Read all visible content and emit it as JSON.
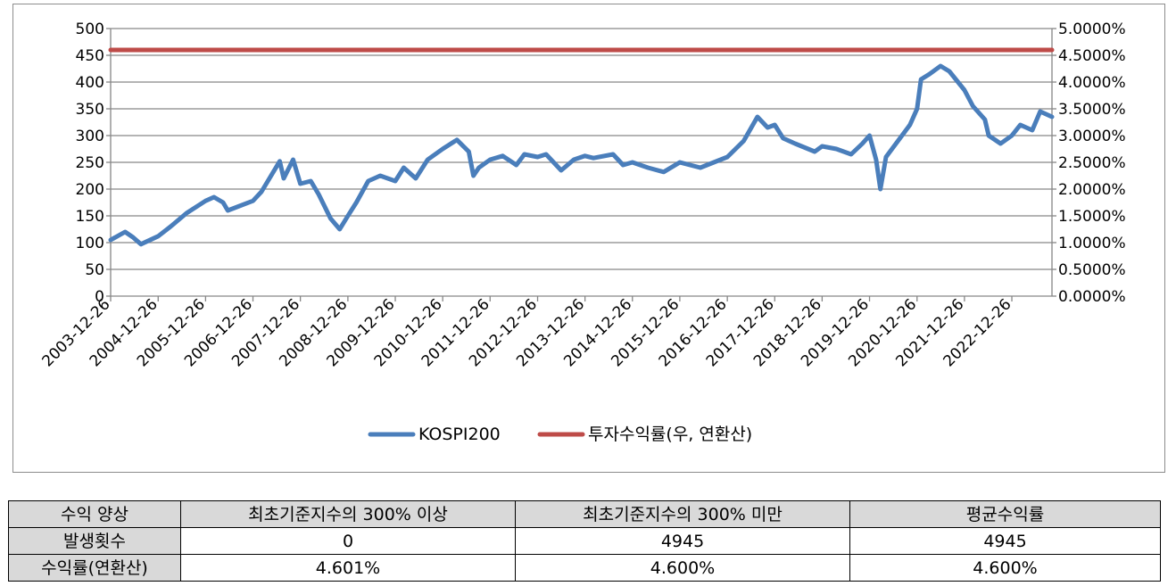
{
  "chart_data": {
    "type": "line",
    "y_left": {
      "min": 0,
      "max": 500,
      "ticks": [
        "500",
        "450",
        "400",
        "350",
        "300",
        "250",
        "200",
        "150",
        "100",
        "50",
        "0"
      ]
    },
    "y_right": {
      "min": 0,
      "max": 5,
      "ticks": [
        "5.0000%",
        "4.5000%",
        "4.0000%",
        "3.5000%",
        "3.0000%",
        "2.5000%",
        "2.0000%",
        "1.5000%",
        "1.0000%",
        "0.5000%",
        "0.0000%"
      ]
    },
    "x_ticks": [
      "2003-12-26",
      "2004-12-26",
      "2005-12-26",
      "2006-12-26",
      "2007-12-26",
      "2008-12-26",
      "2009-12-26",
      "2010-12-26",
      "2011-12-26",
      "2012-12-26",
      "2013-12-26",
      "2014-12-26",
      "2015-12-26",
      "2016-12-26",
      "2017-12-26",
      "2018-12-26",
      "2019-12-26",
      "2020-12-26",
      "2021-12-26",
      "2022-12-26"
    ],
    "x_range": [
      "2003-12-26",
      "2023-10-31"
    ],
    "grid": true,
    "legend_position": "bottom",
    "series": [
      {
        "name": "KOSPI200",
        "axis": "left",
        "color": "#4a7ebb",
        "x": [
          "2003-12-26",
          "2004-04-15",
          "2004-06-15",
          "2004-08-15",
          "2004-12-26",
          "2005-04-01",
          "2005-08-01",
          "2005-12-26",
          "2006-03-01",
          "2006-05-10",
          "2006-06-15",
          "2006-12-26",
          "2007-03-01",
          "2007-07-20",
          "2007-08-20",
          "2007-10-31",
          "2007-12-26",
          "2008-03-15",
          "2008-05-15",
          "2008-08-15",
          "2008-10-24",
          "2008-12-26",
          "2009-03-01",
          "2009-06-01",
          "2009-09-01",
          "2009-12-26",
          "2010-03-01",
          "2010-06-01",
          "2010-09-01",
          "2010-12-26",
          "2011-04-15",
          "2011-07-15",
          "2011-08-20",
          "2011-10-01",
          "2011-12-26",
          "2012-04-01",
          "2012-07-15",
          "2012-09-15",
          "2012-12-26",
          "2013-03-01",
          "2013-06-25",
          "2013-10-01",
          "2013-12-26",
          "2014-03-01",
          "2014-07-30",
          "2014-10-15",
          "2014-12-26",
          "2015-04-25",
          "2015-08-24",
          "2015-12-26",
          "2016-06-01",
          "2016-12-26",
          "2017-05-01",
          "2017-08-15",
          "2017-11-01",
          "2017-12-26",
          "2018-03-01",
          "2018-06-01",
          "2018-10-30",
          "2018-12-26",
          "2019-04-15",
          "2019-08-06",
          "2019-11-01",
          "2019-12-26",
          "2020-02-15",
          "2020-03-19",
          "2020-05-01",
          "2020-08-01",
          "2020-11-01",
          "2020-12-26",
          "2021-01-25",
          "2021-04-01",
          "2021-06-25",
          "2021-09-01",
          "2021-12-26",
          "2022-03-01",
          "2022-06-01",
          "2022-07-01",
          "2022-09-30",
          "2022-12-26",
          "2023-03-01",
          "2023-06-01",
          "2023-08-01",
          "2023-10-31"
        ],
        "values": [
          105,
          120,
          110,
          97,
          112,
          130,
          155,
          178,
          185,
          175,
          160,
          178,
          195,
          252,
          220,
          255,
          210,
          215,
          190,
          145,
          125,
          150,
          175,
          215,
          225,
          215,
          240,
          220,
          255,
          275,
          292,
          270,
          225,
          240,
          255,
          262,
          245,
          265,
          260,
          265,
          235,
          255,
          262,
          258,
          265,
          245,
          250,
          240,
          232,
          250,
          240,
          260,
          290,
          335,
          315,
          320,
          295,
          285,
          270,
          280,
          275,
          265,
          285,
          300,
          255,
          200,
          260,
          290,
          320,
          350,
          405,
          415,
          430,
          420,
          385,
          355,
          330,
          300,
          285,
          300,
          320,
          310,
          345,
          335
        ]
      },
      {
        "name": "투자수익률(우, 연환산)",
        "axis": "right",
        "color": "#be4b48",
        "x": [
          "2003-12-26",
          "2023-10-31"
        ],
        "values": [
          4.6,
          4.6
        ]
      }
    ]
  },
  "table": {
    "headers": [
      "수익 양상",
      "최초기준지수의 300% 이상",
      "최초기준지수의 300% 미만",
      "평균수익률"
    ],
    "rows": [
      {
        "label": "발생횟수",
        "cells": [
          "0",
          "4945",
          "4945"
        ]
      },
      {
        "label": "수익률(연환산)",
        "cells": [
          "4.601%",
          "4.600%",
          "4.600%"
        ]
      }
    ]
  }
}
